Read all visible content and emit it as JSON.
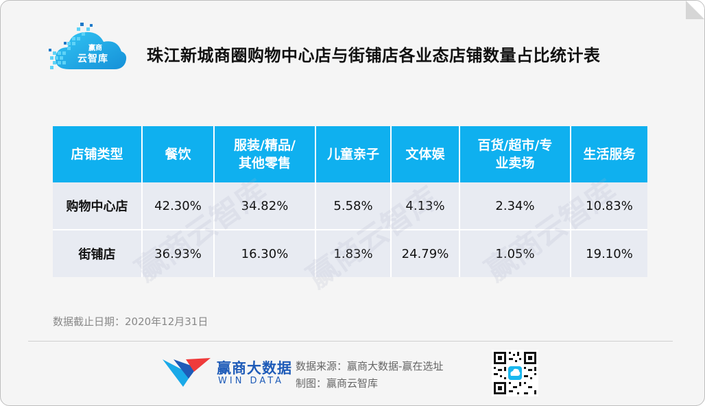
{
  "title": "珠江新城商圈购物中心店与街铺店各业态店铺数量占比统计表",
  "logo": {
    "small_text": "赢商",
    "text": "云智库"
  },
  "watermark_text": "赢商云智库",
  "table": {
    "headers": [
      [
        "店铺类型"
      ],
      [
        "餐饮"
      ],
      [
        "服装/精品/",
        "其他零售"
      ],
      [
        "儿童亲子"
      ],
      [
        "文体娱"
      ],
      [
        "百货/超市/专",
        "业卖场"
      ],
      [
        "生活服务"
      ]
    ],
    "rows": [
      {
        "label": "购物中心店",
        "values": [
          "42.30%",
          "34.82%",
          "5.58%",
          "4.13%",
          "2.34%",
          "10.83%"
        ]
      },
      {
        "label": "街铺店",
        "values": [
          "36.93%",
          "16.30%",
          "1.83%",
          "24.79%",
          "1.05%",
          "19.10%"
        ]
      }
    ]
  },
  "chart_data": {
    "type": "table",
    "title": "珠江新城商圈购物中心店与街铺店各业态店铺数量占比统计表",
    "row_header": "店铺类型",
    "categories": [
      "餐饮",
      "服装/精品/其他零售",
      "儿童亲子",
      "文体娱",
      "百货/超市/专业卖场",
      "生活服务"
    ],
    "series": [
      {
        "name": "购物中心店",
        "values": [
          42.3,
          34.82,
          5.58,
          4.13,
          2.34,
          10.83
        ]
      },
      {
        "name": "街铺店",
        "values": [
          36.93,
          16.3,
          1.83,
          24.79,
          1.05,
          19.1
        ]
      }
    ],
    "unit": "%"
  },
  "date_note": "数据截止日期：2020年12月31日",
  "footer": {
    "brand": "赢商大数据",
    "brand_en": "WIN DATA",
    "source": "数据来源：赢商大数据-赢在选址",
    "maker": "制图：赢商云智库"
  },
  "colors": {
    "header_bg": "#0fb0ef",
    "cell_bg": "#e8ebf2",
    "brand_blue": "#1e5bb8",
    "logo_cyan": "#19b8ef"
  }
}
